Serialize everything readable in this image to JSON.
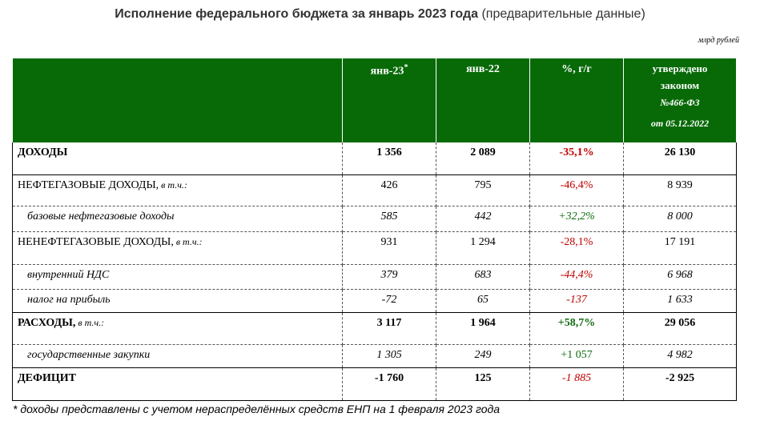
{
  "title": {
    "bold": "Исполнение федерального бюджета за январь 2023 года",
    "normal": "(предварительные данные)"
  },
  "unit": "млрд рублей",
  "header": {
    "col1": "янв-23",
    "col1_mark": "*",
    "col2": "янв-22",
    "col3": "%, г/г",
    "col4_line1": "утверждено",
    "col4_line2": "законом",
    "col4_line3": "№466-ФЗ",
    "col4_line4": "от 05.12.2022"
  },
  "rows": [
    {
      "label": "ДОХОДЫ",
      "suffix": "",
      "v1": "1 356",
      "v2": "2 089",
      "pct": "-35,1%",
      "law": "26 130",
      "pct_color": "#c00000"
    },
    {
      "label": "НЕФТЕГАЗОВЫЕ ДОХОДЫ,",
      "suffix": " в т.ч.:",
      "v1": "426",
      "v2": "795",
      "pct": "-46,4%",
      "law": "8 939",
      "pct_color": "#c00000"
    },
    {
      "label": "базовые нефтегазовые доходы",
      "suffix": "",
      "v1": "585",
      "v2": "442",
      "pct": "+32,2%",
      "law": "8 000",
      "pct_color": "#0f6a0f"
    },
    {
      "label": "НЕНЕФТЕГАЗОВЫЕ ДОХОДЫ,",
      "suffix": " в т.ч.:",
      "v1": "931",
      "v2": "1 294",
      "pct": "-28,1%",
      "law": "17 191",
      "pct_color": "#c00000"
    },
    {
      "label": "внутренний НДС",
      "suffix": "",
      "v1": "379",
      "v2": "683",
      "pct": "-44,4%",
      "law": "6 968",
      "pct_color": "#c00000"
    },
    {
      "label": "налог на прибыль",
      "suffix": "",
      "v1": "-72",
      "v2": "65",
      "pct": "-137",
      "law": "1 633",
      "pct_color": "#c00000"
    },
    {
      "label": "РАСХОДЫ,",
      "suffix": " в т.ч.:",
      "v1": "3 117",
      "v2": "1 964",
      "pct": "+58,7%",
      "law": "29 056",
      "pct_color": "#0f6a0f"
    },
    {
      "label": "государственные закупки",
      "suffix": "",
      "v1": "1 305",
      "v2": "249",
      "pct": "+1 057",
      "law": "4 982",
      "pct_color": "#0f6a0f"
    },
    {
      "label": "ДЕФИЦИТ",
      "suffix": "",
      "v1": "-1 760",
      "v2": "125",
      "pct": "-1 885",
      "law": "-2 925",
      "pct_color": "#c00000"
    }
  ],
  "footnote": "* доходы представлены с учетом нераспределённых средств ЕНП на 1 февраля 2023 года"
}
